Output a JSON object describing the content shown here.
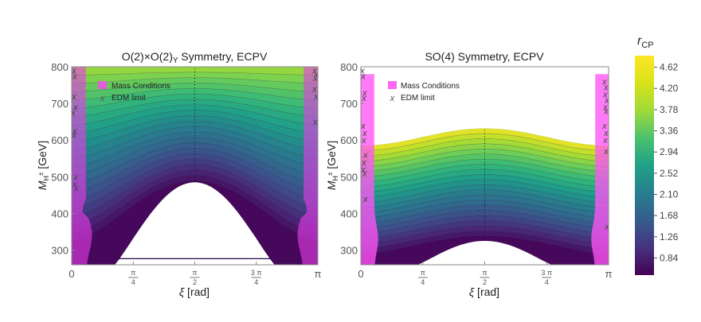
{
  "chart_data": {
    "type": "heatmap",
    "panels": [
      {
        "title_main": "O(2)×O(2)",
        "title_sub": "Y",
        "title_rest": " Symmetry, ECPV",
        "xlabel_sym": "ξ",
        "xlabel_unit": " [rad]",
        "ylabel_sym": "M",
        "ylabel_sub": "H",
        "ylabel_sup": "±",
        "ylabel_unit": " [GeV]",
        "xlim": [
          0,
          3.14159
        ],
        "ylim": [
          260,
          800
        ],
        "yticks": [
          "300",
          "400",
          "500",
          "600",
          "700",
          "800"
        ],
        "xticks": [
          {
            "label": "0",
            "value": 0
          },
          {
            "label": "π/4",
            "num": "π",
            "den": "4",
            "value": 0.7854
          },
          {
            "label": "π/2",
            "num": "π",
            "den": "2",
            "value": 1.5708
          },
          {
            "label": "3π/4",
            "num": "3 π",
            "den": "4",
            "value": 2.3562
          },
          {
            "label": "π",
            "value": 3.14159
          }
        ],
        "region": {
          "kind": "full",
          "top": 800,
          "bottom": 260
        },
        "hole": {
          "base": 260,
          "peak": 485,
          "xmin": 0.55,
          "xmax": 2.59,
          "band_top": 278
        },
        "legend": {
          "mass": "Mass Conditions",
          "edm": "EDM limit"
        },
        "edm_points": [
          [
            0.03,
            790
          ],
          [
            0.04,
            775
          ],
          [
            0.03,
            720
          ],
          [
            0.05,
            690
          ],
          [
            0.02,
            675
          ],
          [
            0.04,
            625
          ],
          [
            0.03,
            615
          ],
          [
            0.05,
            500
          ],
          [
            0.04,
            480
          ],
          [
            0.06,
            470
          ],
          [
            3.1,
            790
          ],
          [
            3.12,
            780
          ],
          [
            3.11,
            770
          ],
          [
            3.1,
            740
          ],
          [
            3.12,
            720
          ],
          [
            3.11,
            650
          ]
        ]
      },
      {
        "title_main": "SO(4) Symmetry, ECPV",
        "title_sub": "",
        "title_rest": "",
        "xlabel_sym": "ξ",
        "xlabel_unit": " [rad]",
        "ylabel_sym": "M",
        "ylabel_sub": "H",
        "ylabel_sup": "±",
        "ylabel_unit": " [GeV]",
        "xlim": [
          0,
          3.14159
        ],
        "ylim": [
          260,
          800
        ],
        "yticks": [
          "300",
          "400",
          "500",
          "600",
          "700",
          "800"
        ],
        "xticks": [
          {
            "label": "0",
            "value": 0
          },
          {
            "label": "π/4",
            "num": "π",
            "den": "4",
            "value": 0.7854
          },
          {
            "label": "π/2",
            "num": "π",
            "den": "2",
            "value": 1.5708
          },
          {
            "label": "3π/4",
            "num": "3 π",
            "den": "4",
            "value": 2.3562
          },
          {
            "label": "π",
            "value": 3.14159
          }
        ],
        "region": {
          "kind": "arch",
          "top_edge": 585,
          "top_mid": 632,
          "bottom": 260
        },
        "hole": {
          "base": 260,
          "peak": 325,
          "xmin": 0.72,
          "xmax": 2.42,
          "band_top": 0
        },
        "legend": {
          "mass": "Mass Conditions",
          "edm": "EDM limit"
        },
        "edm_points": [
          [
            0.02,
            790
          ],
          [
            0.03,
            775
          ],
          [
            0.05,
            730
          ],
          [
            0.04,
            715
          ],
          [
            0.03,
            640
          ],
          [
            0.05,
            620
          ],
          [
            0.04,
            600
          ],
          [
            0.06,
            560
          ],
          [
            0.04,
            540
          ],
          [
            0.03,
            520
          ],
          [
            0.05,
            510
          ],
          [
            0.06,
            440
          ],
          [
            3.09,
            760
          ],
          [
            3.11,
            745
          ],
          [
            3.1,
            725
          ],
          [
            3.12,
            710
          ],
          [
            3.1,
            690
          ],
          [
            3.11,
            680
          ],
          [
            3.09,
            640
          ],
          [
            3.11,
            620
          ],
          [
            3.1,
            600
          ],
          [
            3.11,
            570
          ],
          [
            3.12,
            365
          ]
        ]
      }
    ],
    "colorbar": {
      "label_main": "r",
      "label_sub": "CP",
      "range": [
        0.5,
        4.85
      ],
      "ticks": [
        "0.84",
        "1.26",
        "1.68",
        "2.10",
        "2.52",
        "2.94",
        "3.36",
        "3.78",
        "4.20",
        "4.62"
      ]
    },
    "colormap": "viridis"
  },
  "colors": {
    "mass_conditions": "#ff33ff",
    "edm": "#555555",
    "axis": "#888888"
  }
}
